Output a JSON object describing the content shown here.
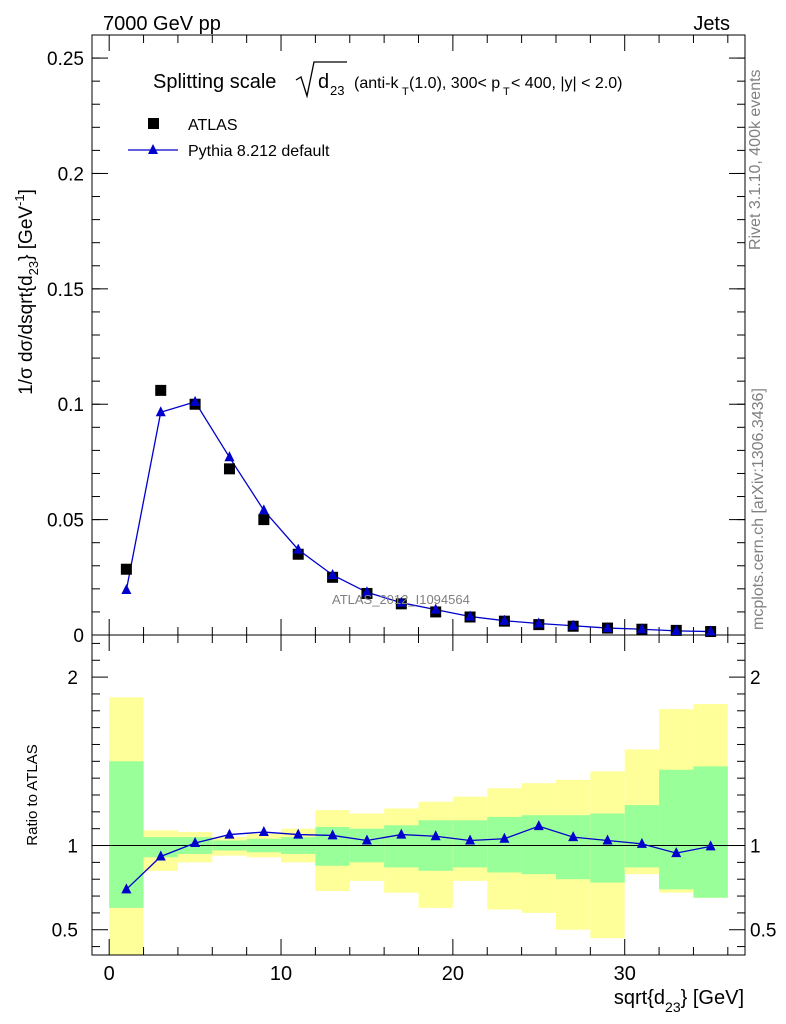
{
  "header": {
    "left": "7000 GeV pp",
    "right": "Jets"
  },
  "side": {
    "rivet": "Rivet 3.1.10,  400k events",
    "mcplots": "mcplots.cern.ch [arXiv:1306.3436]"
  },
  "watermark": "ATLAS_2012_I1094564",
  "chart_data": [
    {
      "type": "scatter",
      "title": "Splitting scale √d23 (anti-kT(1.0), 300< pT < 400, |y| < 2.0)",
      "ylabel": "1/σ dσ/dsqrt{d23} [GeV-1]",
      "xlim": [
        -1,
        37
      ],
      "ylim": [
        0,
        0.26
      ],
      "yticks": [
        "0",
        "0.05",
        "0.1",
        "0.15",
        "0.2",
        "0.25"
      ],
      "legend": "top-left",
      "series": [
        {
          "name": "ATLAS",
          "color": "#000000",
          "marker": "square",
          "x": [
            1,
            3,
            5,
            7,
            9,
            11,
            13,
            15,
            17,
            19,
            21,
            23,
            25,
            27,
            29,
            31,
            33,
            35
          ],
          "y": [
            0.0285,
            0.106,
            0.1,
            0.072,
            0.05,
            0.035,
            0.025,
            0.018,
            0.0135,
            0.01,
            0.0078,
            0.006,
            0.0045,
            0.0038,
            0.003,
            0.0025,
            0.002,
            0.0015
          ]
        },
        {
          "name": "Pythia 8.212 default",
          "color": "#0000cc",
          "marker": "triangle",
          "x": [
            1,
            3,
            5,
            7,
            9,
            11,
            13,
            15,
            17,
            19,
            21,
            23,
            25,
            27,
            29,
            31,
            33,
            35
          ],
          "y": [
            0.0195,
            0.0965,
            0.101,
            0.077,
            0.054,
            0.037,
            0.026,
            0.0185,
            0.014,
            0.011,
            0.008,
            0.0062,
            0.005,
            0.004,
            0.003,
            0.0025,
            0.0018,
            0.0015
          ]
        }
      ]
    },
    {
      "type": "line",
      "xlabel": "sqrt{d23} [GeV]",
      "ylabel": "Ratio to ATLAS",
      "xlim": [
        -1,
        37
      ],
      "ylim": [
        0.35,
        2.25
      ],
      "xticks": [
        "0",
        "10",
        "20",
        "30"
      ],
      "yticks": [
        "0.5",
        "1",
        "2"
      ],
      "bands": {
        "edges": [
          0,
          2,
          4,
          6,
          8,
          10,
          12,
          14,
          16,
          18,
          20,
          22,
          24,
          26,
          28,
          30,
          32,
          34,
          36
        ],
        "yellow_lo": [
          0.33,
          0.85,
          0.9,
          0.94,
          0.93,
          0.9,
          0.73,
          0.79,
          0.72,
          0.63,
          0.79,
          0.62,
          0.6,
          0.5,
          0.45,
          0.83,
          0.72,
          0.69
        ],
        "yellow_hi": [
          1.88,
          1.09,
          1.08,
          1.05,
          1.07,
          1.1,
          1.21,
          1.19,
          1.22,
          1.26,
          1.29,
          1.34,
          1.37,
          1.39,
          1.44,
          1.57,
          1.81,
          1.84
        ],
        "green_lo": [
          0.63,
          0.93,
          0.95,
          0.97,
          0.96,
          0.95,
          0.88,
          0.9,
          0.87,
          0.85,
          0.87,
          0.84,
          0.83,
          0.8,
          0.78,
          0.87,
          0.74,
          0.69
        ],
        "green_hi": [
          1.5,
          1.05,
          1.05,
          1.03,
          1.04,
          1.05,
          1.11,
          1.1,
          1.12,
          1.15,
          1.15,
          1.17,
          1.18,
          1.18,
          1.19,
          1.24,
          1.45,
          1.47
        ]
      },
      "series": [
        {
          "name": "Pythia 8.212 default",
          "color": "#0000cc",
          "marker": "triangle",
          "x": [
            1,
            3,
            5,
            7,
            9,
            11,
            13,
            15,
            17,
            19,
            21,
            23,
            25,
            27,
            29,
            31,
            33,
            35
          ],
          "y": [
            0.74,
            0.935,
            1.015,
            1.065,
            1.08,
            1.065,
            1.06,
            1.03,
            1.065,
            1.055,
            1.03,
            1.04,
            1.115,
            1.05,
            1.03,
            1.01,
            0.955,
            0.995
          ]
        }
      ]
    }
  ]
}
